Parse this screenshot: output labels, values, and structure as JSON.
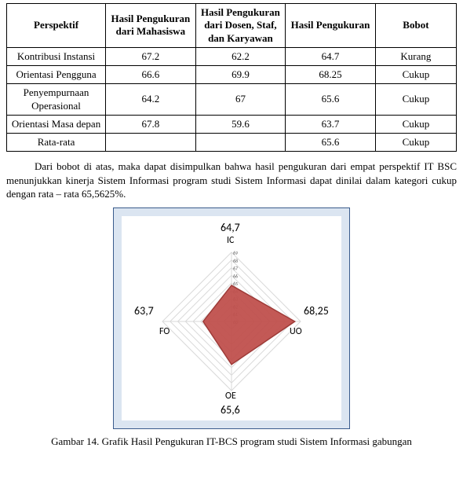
{
  "table": {
    "headers": {
      "perspektif": "Perspektif",
      "mhs": "Hasil Pengukuran dari Mahasiswa",
      "dsk": "Hasil Pengukuran dari Dosen, Staf, dan Karyawan",
      "pengukuran": "Hasil Pengukuran",
      "bobot": "Bobot"
    },
    "rows": [
      {
        "p": "Kontribusi Instansi",
        "mhs": "67.2",
        "dsk": "62.2",
        "peng": "64.7",
        "bobot": "Kurang"
      },
      {
        "p": "Orientasi Pengguna",
        "mhs": "66.6",
        "dsk": "69.9",
        "peng": "68.25",
        "bobot": "Cukup"
      },
      {
        "p": "Penyempurnaan Operasional",
        "mhs": "64.2",
        "dsk": "67",
        "peng": "65.6",
        "bobot": "Cukup"
      },
      {
        "p": "Orientasi Masa depan",
        "mhs": "67.8",
        "dsk": "59.6",
        "peng": "63.7",
        "bobot": "Cukup"
      },
      {
        "p": "Rata-rata",
        "mhs": "",
        "dsk": "",
        "peng": "65.6",
        "bobot": "Cukup"
      }
    ]
  },
  "paragraph": "Dari bobot di atas, maka dapat disimpulkan bahwa hasil pengukuran dari empat perspektif IT BSC menunjukkan kinerja Sistem Informasi program studi Sistem Informasi dapat dinilai dalam kategori cukup dengan rata – rata 65,5625%.",
  "chart": {
    "type": "radar",
    "axes": [
      {
        "key": "IC",
        "label": "IC",
        "value": 64.7,
        "display": "64,7"
      },
      {
        "key": "UO",
        "label": "UO",
        "value": 68.25,
        "display": "68,25"
      },
      {
        "key": "OE",
        "label": "OE",
        "value": 65.6,
        "display": "65,6"
      },
      {
        "key": "FO",
        "label": "FO",
        "value": 63.7,
        "display": "63,7"
      }
    ],
    "scale": {
      "min": 60,
      "max": 69,
      "ticks": [
        60,
        61,
        62,
        63,
        64,
        65,
        66,
        67,
        68,
        69
      ]
    },
    "series_fill": "#c0504d",
    "series_stroke": "#9e3b38",
    "axis_color": "#d9d9d9",
    "grid_color": "#d9d9d9",
    "tick_font_size": 6,
    "axis_label_font_size": 12,
    "value_label_font_size": 14,
    "background": "#ffffff",
    "frame_bg": "#dbe5f1",
    "frame_border": "#3a5b8c"
  },
  "caption": "Gambar 14. Grafik Hasil Pengukuran IT-BCS program studi Sistem Informasi gabungan"
}
